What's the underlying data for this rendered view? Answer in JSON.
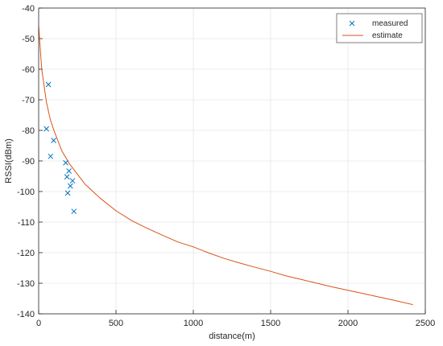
{
  "chart_data": {
    "type": "scatter",
    "xlabel": "distance(m)",
    "ylabel": "RSSI(dBm)",
    "xlim": [
      0,
      2500
    ],
    "ylim": [
      -140,
      -40
    ],
    "xticks": [
      "0",
      "500",
      "1000",
      "1500",
      "2000",
      "2500"
    ],
    "yticks": [
      "-140",
      "-130",
      "-120",
      "-110",
      "-100",
      "-90",
      "-80",
      "-70",
      "-60",
      "-50",
      "-40"
    ],
    "grid": true,
    "legend_position": "top-right",
    "series": [
      {
        "name": "measured",
        "kind": "scatter",
        "marker": "x",
        "color": "#0072BD",
        "points": [
          [
            63,
            -65
          ],
          [
            50,
            -79.5
          ],
          [
            97,
            -83.3
          ],
          [
            77,
            -88.5
          ],
          [
            175,
            -90.6
          ],
          [
            196,
            -93.3
          ],
          [
            183,
            -95.2
          ],
          [
            219,
            -96.5
          ],
          [
            205,
            -98.2
          ],
          [
            188,
            -100.5
          ],
          [
            228,
            -106.5
          ]
        ]
      },
      {
        "name": "estimate",
        "kind": "line",
        "color": "#D95319",
        "points": [
          [
            0,
            -46
          ],
          [
            20,
            -60
          ],
          [
            50,
            -70.7
          ],
          [
            75,
            -76.4
          ],
          [
            100,
            -80.2
          ],
          [
            150,
            -86.7
          ],
          [
            200,
            -91
          ],
          [
            300,
            -97.6
          ],
          [
            400,
            -102.3
          ],
          [
            500,
            -106.3
          ],
          [
            600,
            -109.5
          ],
          [
            700,
            -112
          ],
          [
            800,
            -114.3
          ],
          [
            900,
            -116.5
          ],
          [
            1000,
            -118.1
          ],
          [
            1100,
            -120.1
          ],
          [
            1200,
            -121.9
          ],
          [
            1300,
            -123.4
          ],
          [
            1400,
            -124.8
          ],
          [
            1500,
            -126.1
          ],
          [
            1600,
            -127.6
          ],
          [
            1700,
            -128.8
          ],
          [
            1800,
            -130
          ],
          [
            1900,
            -131.2
          ],
          [
            2000,
            -132.3
          ],
          [
            2100,
            -133.4
          ],
          [
            2200,
            -134.5
          ],
          [
            2300,
            -135.6
          ],
          [
            2420,
            -137
          ]
        ]
      }
    ]
  }
}
